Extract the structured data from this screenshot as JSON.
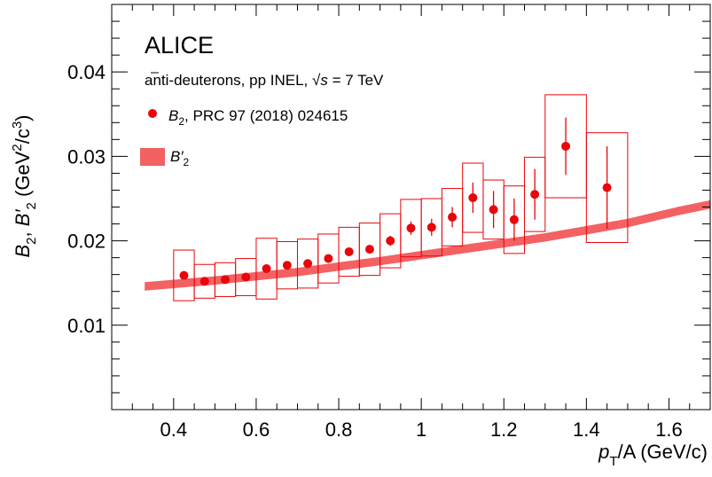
{
  "chart_data": {
    "type": "scatter",
    "experiment_label": "ALICE",
    "subtitle_prefix": "anti-deuterons, pp INEL, ",
    "subtitle_sqrt": "√",
    "subtitle_s": "s",
    "subtitle_suffix": " = 7 TeV",
    "xlabel": {
      "p": "p",
      "sub": "T",
      "rest": "/A (GeV/c)"
    },
    "ylabel": {
      "b": "B",
      "b_sub": "2",
      "sep": ", ",
      "bp": "B′",
      "bp_sub": "2",
      "unit_open": " (GeV",
      "unit_sup1": "2",
      "unit_slash": "/c",
      "unit_sup2": "3",
      "unit_close": ")"
    },
    "xlim": [
      0.25,
      1.7
    ],
    "ylim": [
      0.0,
      0.048
    ],
    "x_ticks": [
      0.4,
      0.6,
      0.8,
      1.0,
      1.2,
      1.4,
      1.6
    ],
    "x_tick_labels": [
      "0.4",
      "0.6",
      "0.8",
      "1",
      "1.2",
      "1.4",
      "1.6"
    ],
    "y_ticks": [
      0.01,
      0.02,
      0.03,
      0.04
    ],
    "y_tick_labels": [
      "0.01",
      "0.02",
      "0.03",
      "0.04"
    ],
    "legend": [
      {
        "symbol": "marker",
        "name": "B",
        "sub": "2",
        "suffix": ", PRC 97 (2018) 024615"
      },
      {
        "symbol": "band",
        "name": "B′",
        "sub": "2",
        "suffix": ""
      }
    ],
    "colors": {
      "marker": "#e8060b",
      "band": "#f36163",
      "box": "#e8060b"
    },
    "series": [
      {
        "name": "B2",
        "x": [
          0.425,
          0.475,
          0.525,
          0.575,
          0.625,
          0.675,
          0.725,
          0.775,
          0.825,
          0.875,
          0.925,
          0.975,
          1.025,
          1.075,
          1.125,
          1.175,
          1.225,
          1.275,
          1.35,
          1.45
        ],
        "y": [
          0.0159,
          0.0152,
          0.0154,
          0.0157,
          0.0167,
          0.0171,
          0.0173,
          0.0179,
          0.0187,
          0.019,
          0.02,
          0.0215,
          0.0216,
          0.0228,
          0.0251,
          0.0237,
          0.0225,
          0.0255,
          0.0312,
          0.0263
        ],
        "stat_err": [
          0.0003,
          0.0003,
          0.0003,
          0.0003,
          0.0003,
          0.0003,
          0.0003,
          0.0004,
          0.0004,
          0.0005,
          0.0006,
          0.0008,
          0.001,
          0.0012,
          0.0018,
          0.0022,
          0.0025,
          0.003,
          0.0034,
          0.0049
        ],
        "sys_err": [
          0.003,
          0.002,
          0.002,
          0.0022,
          0.0036,
          0.0028,
          0.0029,
          0.0029,
          0.0029,
          0.0031,
          0.0032,
          0.0034,
          0.0034,
          0.0034,
          0.0041,
          0.0035,
          0.004,
          0.0044,
          0.0061,
          0.0065
        ],
        "x_halfwidth": [
          0.025,
          0.025,
          0.025,
          0.025,
          0.025,
          0.025,
          0.025,
          0.025,
          0.025,
          0.025,
          0.025,
          0.025,
          0.025,
          0.025,
          0.025,
          0.025,
          0.025,
          0.025,
          0.05,
          0.05
        ]
      },
      {
        "name": "B'2",
        "x": [
          0.33,
          0.5,
          0.7,
          0.9,
          1.1,
          1.3,
          1.5,
          1.62,
          1.7
        ],
        "y_low": [
          0.0141,
          0.0148,
          0.0158,
          0.0171,
          0.0185,
          0.0199,
          0.0216,
          0.023,
          0.0238
        ],
        "y_high": [
          0.0151,
          0.0158,
          0.0168,
          0.0181,
          0.0195,
          0.0209,
          0.0226,
          0.024,
          0.0248
        ]
      }
    ]
  }
}
